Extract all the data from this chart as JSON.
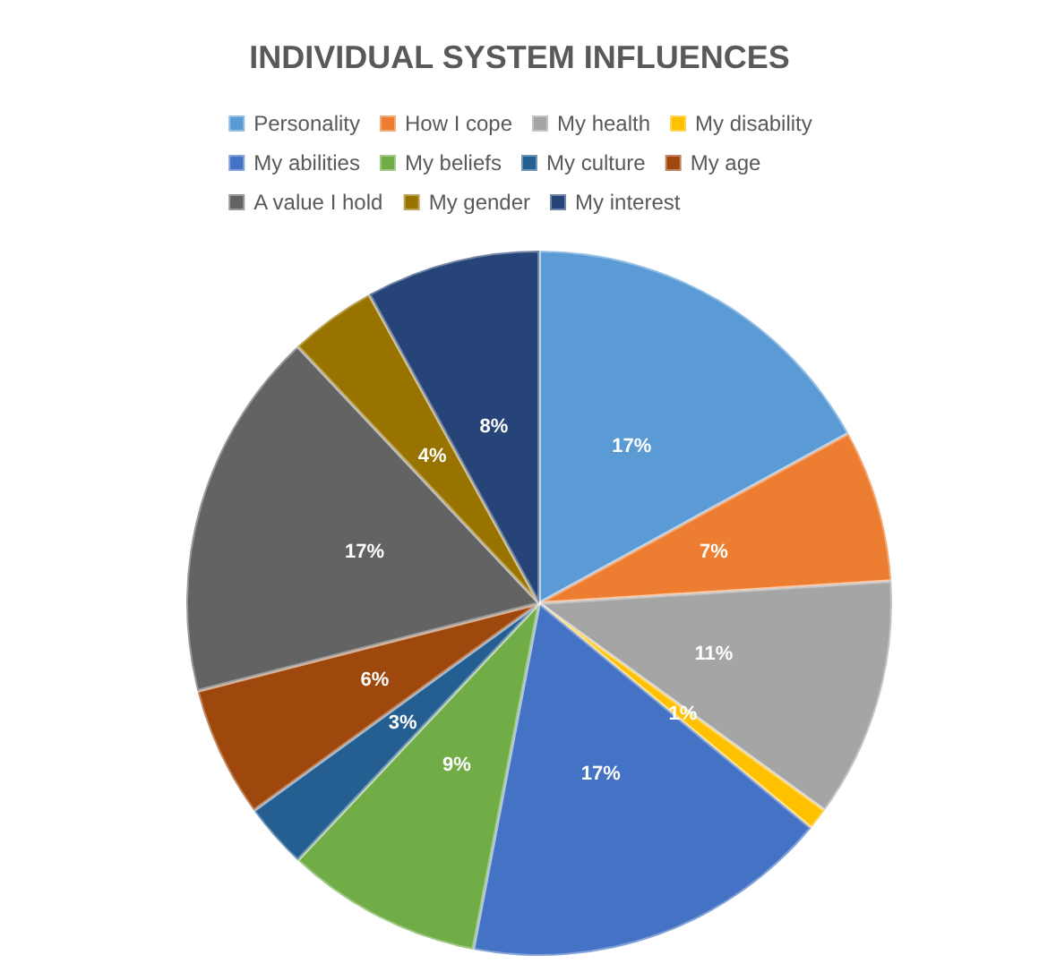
{
  "chart_data": {
    "type": "pie",
    "title": "INDIVIDUAL SYSTEM INFLUENCES",
    "categories": [
      "Personality",
      "How I cope",
      "My health",
      "My disability",
      "My abilities",
      "My beliefs",
      "My culture",
      "My age",
      "A value I hold",
      "My gender",
      "My interest"
    ],
    "values": [
      17,
      7,
      11,
      1,
      17,
      9,
      3,
      6,
      17,
      4,
      8
    ],
    "colors": [
      "#5b9bd5",
      "#ed7d31",
      "#a5a5a5",
      "#ffc000",
      "#4472c4",
      "#70ad47",
      "#255e91",
      "#9e480e",
      "#636363",
      "#997300",
      "#264478"
    ],
    "value_labels": [
      "17%",
      "7%",
      "11%",
      "1%",
      "17%",
      "9%",
      "3%",
      "6%",
      "17%",
      "4%",
      "8%"
    ],
    "legend": "top"
  }
}
